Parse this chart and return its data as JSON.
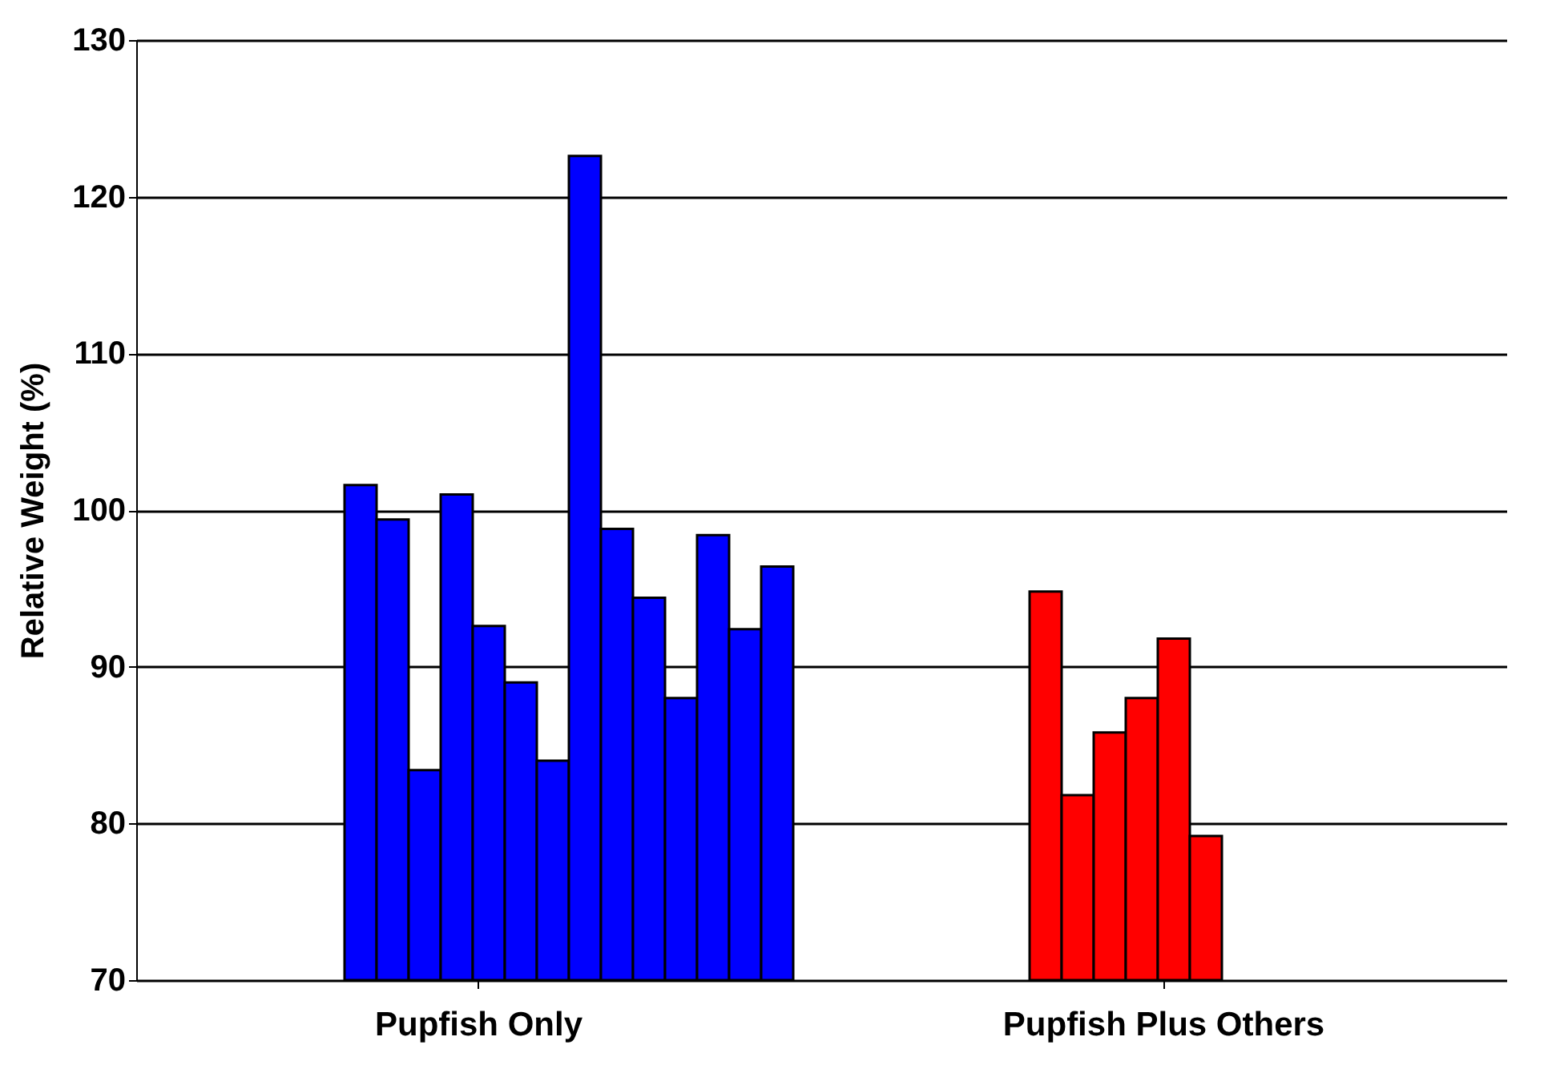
{
  "chart_data": {
    "type": "bar",
    "ylabel": "Relative Weight (%)",
    "categories": [
      "Pupfish Only",
      "Pupfish Plus Others"
    ],
    "series": [
      {
        "colors": [
          "#0000ff",
          "#ff0000"
        ],
        "values": [
          101.6,
          94.8
        ]
      },
      {
        "colors": [
          "#0000ff",
          "#ff0000"
        ],
        "values": [
          99.4,
          81.8
        ]
      },
      {
        "colors": [
          "#0000ff",
          "#ff0000"
        ],
        "values": [
          83.4,
          85.8
        ]
      },
      {
        "colors": [
          "#0000ff",
          "#ff0000"
        ],
        "values": [
          101.0,
          88.0
        ]
      },
      {
        "colors": [
          "#0000ff",
          "#ff0000"
        ],
        "values": [
          92.6,
          91.8
        ]
      },
      {
        "colors": [
          "#0000ff",
          "#ff0000"
        ],
        "values": [
          89.0,
          79.2
        ]
      },
      {
        "colors": [
          "#0000ff",
          "#ff0000"
        ],
        "values": [
          84.0,
          null
        ]
      },
      {
        "colors": [
          "#0000ff",
          "#ff0000"
        ],
        "values": [
          122.6,
          null
        ]
      },
      {
        "colors": [
          "#0000ff",
          "#ff0000"
        ],
        "values": [
          98.8,
          null
        ]
      },
      {
        "colors": [
          "#0000ff",
          "#ff0000"
        ],
        "values": [
          94.4,
          null
        ]
      },
      {
        "colors": [
          "#0000ff",
          "#ff0000"
        ],
        "values": [
          88.0,
          null
        ]
      },
      {
        "colors": [
          "#0000ff",
          "#ff0000"
        ],
        "values": [
          98.4,
          null
        ]
      },
      {
        "colors": [
          "#0000ff",
          "#ff0000"
        ],
        "values": [
          92.4,
          null
        ]
      },
      {
        "colors": [
          "#0000ff",
          "#ff0000"
        ],
        "values": [
          96.4,
          null
        ]
      }
    ],
    "ylim": [
      70,
      130
    ],
    "yticks": [
      70,
      80,
      90,
      100,
      110,
      120,
      130
    ],
    "grid": "y"
  }
}
